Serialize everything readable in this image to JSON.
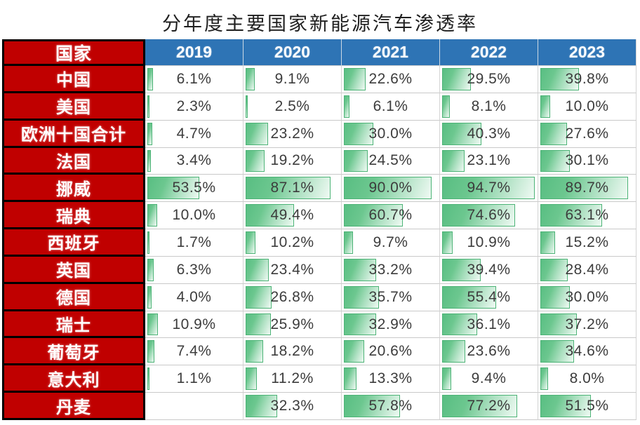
{
  "title": "分年度主要国家新能源汽车渗透率",
  "colors": {
    "header_blue": "#2E74B5",
    "country_red": "#C00000",
    "bar_border_green": "#4CB376",
    "bar_fill_green": "#58BE82",
    "value_text": "#3C3C3C",
    "grid_line": "#C9C9C9",
    "black_border": "#000000"
  },
  "table": {
    "corner_label": "国家",
    "years": [
      "2019",
      "2020",
      "2021",
      "2022",
      "2023"
    ],
    "rows": [
      {
        "country": "中国",
        "values": [
          6.1,
          9.1,
          22.6,
          29.5,
          39.8
        ],
        "labels": [
          "6.1%",
          "9.1%",
          "22.6%",
          "29.5%",
          "39.8%"
        ]
      },
      {
        "country": "美国",
        "values": [
          2.3,
          2.5,
          6.1,
          8.1,
          10.0
        ],
        "labels": [
          "2.3%",
          "2.5%",
          "6.1%",
          "8.1%",
          "10.0%"
        ]
      },
      {
        "country": "欧洲十国合计",
        "values": [
          4.7,
          23.2,
          30.0,
          40.3,
          27.6
        ],
        "labels": [
          "4.7%",
          "23.2%",
          "30.0%",
          "40.3%",
          "27.6%"
        ]
      },
      {
        "country": "法国",
        "values": [
          3.4,
          19.2,
          24.5,
          23.1,
          30.1
        ],
        "labels": [
          "3.4%",
          "19.2%",
          "24.5%",
          "23.1%",
          "30.1%"
        ]
      },
      {
        "country": "挪威",
        "values": [
          53.5,
          87.1,
          90.0,
          94.7,
          89.7
        ],
        "labels": [
          "53.5%",
          "87.1%",
          "90.0%",
          "94.7%",
          "89.7%"
        ]
      },
      {
        "country": "瑞典",
        "values": [
          10.0,
          49.4,
          60.7,
          74.6,
          63.1
        ],
        "labels": [
          "10.0%",
          "49.4%",
          "60.7%",
          "74.6%",
          "63.1%"
        ]
      },
      {
        "country": "西班牙",
        "values": [
          1.7,
          10.2,
          9.7,
          10.9,
          15.2
        ],
        "labels": [
          "1.7%",
          "10.2%",
          "9.7%",
          "10.9%",
          "15.2%"
        ]
      },
      {
        "country": "英国",
        "values": [
          6.3,
          23.4,
          33.2,
          39.4,
          28.4
        ],
        "labels": [
          "6.3%",
          "23.4%",
          "33.2%",
          "39.4%",
          "28.4%"
        ]
      },
      {
        "country": "德国",
        "values": [
          4.0,
          26.8,
          35.7,
          55.4,
          30.0
        ],
        "labels": [
          "4.0%",
          "26.8%",
          "35.7%",
          "55.4%",
          "30.0%"
        ]
      },
      {
        "country": "瑞士",
        "values": [
          10.9,
          25.9,
          32.9,
          36.1,
          37.2
        ],
        "labels": [
          "10.9%",
          "25.9%",
          "32.9%",
          "36.1%",
          "37.2%"
        ]
      },
      {
        "country": "葡萄牙",
        "values": [
          7.4,
          18.2,
          20.6,
          23.6,
          34.6
        ],
        "labels": [
          "7.4%",
          "18.2%",
          "20.6%",
          "23.6%",
          "34.6%"
        ]
      },
      {
        "country": "意大利",
        "values": [
          1.1,
          11.2,
          13.3,
          9.4,
          8.0
        ],
        "labels": [
          "1.1%",
          "11.2%",
          "13.3%",
          "9.4%",
          "8.0%"
        ]
      },
      {
        "country": "丹麦",
        "values": [
          null,
          32.3,
          57.8,
          77.2,
          51.5
        ],
        "labels": [
          "",
          "32.3%",
          "57.8%",
          "77.2%",
          "51.5%"
        ]
      }
    ]
  },
  "chart_data": {
    "type": "table",
    "title": "分年度主要国家新能源汽车渗透率",
    "categories": [
      "2019",
      "2020",
      "2021",
      "2022",
      "2023"
    ],
    "unit": "%",
    "bar_style": "green gradient data bars, width proportional to value",
    "bar_scale": [
      0,
      100
    ],
    "series": [
      {
        "name": "中国",
        "values": [
          6.1,
          9.1,
          22.6,
          29.5,
          39.8
        ]
      },
      {
        "name": "美国",
        "values": [
          2.3,
          2.5,
          6.1,
          8.1,
          10.0
        ]
      },
      {
        "name": "欧洲十国合计",
        "values": [
          4.7,
          23.2,
          30.0,
          40.3,
          27.6
        ]
      },
      {
        "name": "法国",
        "values": [
          3.4,
          19.2,
          24.5,
          23.1,
          30.1
        ]
      },
      {
        "name": "挪威",
        "values": [
          53.5,
          87.1,
          90.0,
          94.7,
          89.7
        ]
      },
      {
        "name": "瑞典",
        "values": [
          10.0,
          49.4,
          60.7,
          74.6,
          63.1
        ]
      },
      {
        "name": "西班牙",
        "values": [
          1.7,
          10.2,
          9.7,
          10.9,
          15.2
        ]
      },
      {
        "name": "英国",
        "values": [
          6.3,
          23.4,
          33.2,
          39.4,
          28.4
        ]
      },
      {
        "name": "德国",
        "values": [
          4.0,
          26.8,
          35.7,
          55.4,
          30.0
        ]
      },
      {
        "name": "瑞士",
        "values": [
          10.9,
          25.9,
          32.9,
          36.1,
          37.2
        ]
      },
      {
        "name": "葡萄牙",
        "values": [
          7.4,
          18.2,
          20.6,
          23.6,
          34.6
        ]
      },
      {
        "name": "意大利",
        "values": [
          1.1,
          11.2,
          13.3,
          9.4,
          8.0
        ]
      },
      {
        "name": "丹麦",
        "values": [
          null,
          32.3,
          57.8,
          77.2,
          51.5
        ]
      }
    ]
  }
}
